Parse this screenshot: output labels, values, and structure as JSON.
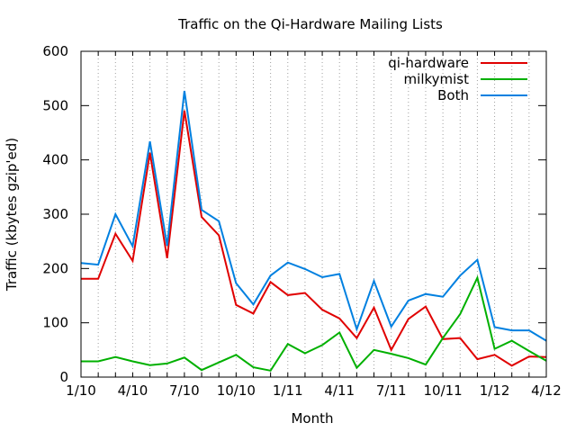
{
  "chart_data": {
    "type": "line",
    "title": "Traffic on the Qi-Hardware Mailing Lists",
    "xlabel": "Month",
    "ylabel": "Traffic (kbytes gzip'ed)",
    "ylim": [
      0,
      600
    ],
    "yticks": [
      0,
      100,
      200,
      300,
      400,
      500,
      600
    ],
    "x_tick_labels": [
      "1/10",
      "4/10",
      "7/10",
      "10/10",
      "1/11",
      "4/11",
      "7/11",
      "10/11",
      "1/12",
      "4/12"
    ],
    "grid": "vertical dotted lines at each month",
    "legend_position": "top-right",
    "x": [
      "1/10",
      "2/10",
      "3/10",
      "4/10",
      "5/10",
      "6/10",
      "7/10",
      "8/10",
      "9/10",
      "10/10",
      "11/10",
      "12/10",
      "1/11",
      "2/11",
      "3/11",
      "4/11",
      "5/11",
      "6/11",
      "7/11",
      "8/11",
      "9/11",
      "10/11",
      "11/11",
      "12/11",
      "1/12",
      "2/12",
      "3/12",
      "4/12"
    ],
    "series": [
      {
        "name": "qi-hardware",
        "color": "#e00000",
        "values": [
          181,
          181,
          264,
          214,
          413,
          219,
          491,
          295,
          261,
          133,
          117,
          175,
          151,
          155,
          124,
          108,
          72,
          128,
          50,
          107,
          130,
          70,
          72,
          33,
          41,
          21,
          38,
          37
        ]
      },
      {
        "name": "milkymist",
        "color": "#00b000",
        "values": [
          29,
          29,
          37,
          29,
          22,
          25,
          36,
          13,
          27,
          41,
          18,
          12,
          61,
          44,
          59,
          82,
          17,
          50,
          43,
          35,
          23,
          72,
          116,
          183,
          52,
          67,
          48,
          30
        ]
      },
      {
        "name": "Both",
        "color": "#0080e0",
        "values": [
          210,
          207,
          300,
          241,
          434,
          242,
          527,
          308,
          287,
          173,
          134,
          187,
          211,
          199,
          184,
          190,
          88,
          177,
          93,
          141,
          153,
          148,
          187,
          216,
          92,
          86,
          86,
          67
        ]
      }
    ]
  }
}
